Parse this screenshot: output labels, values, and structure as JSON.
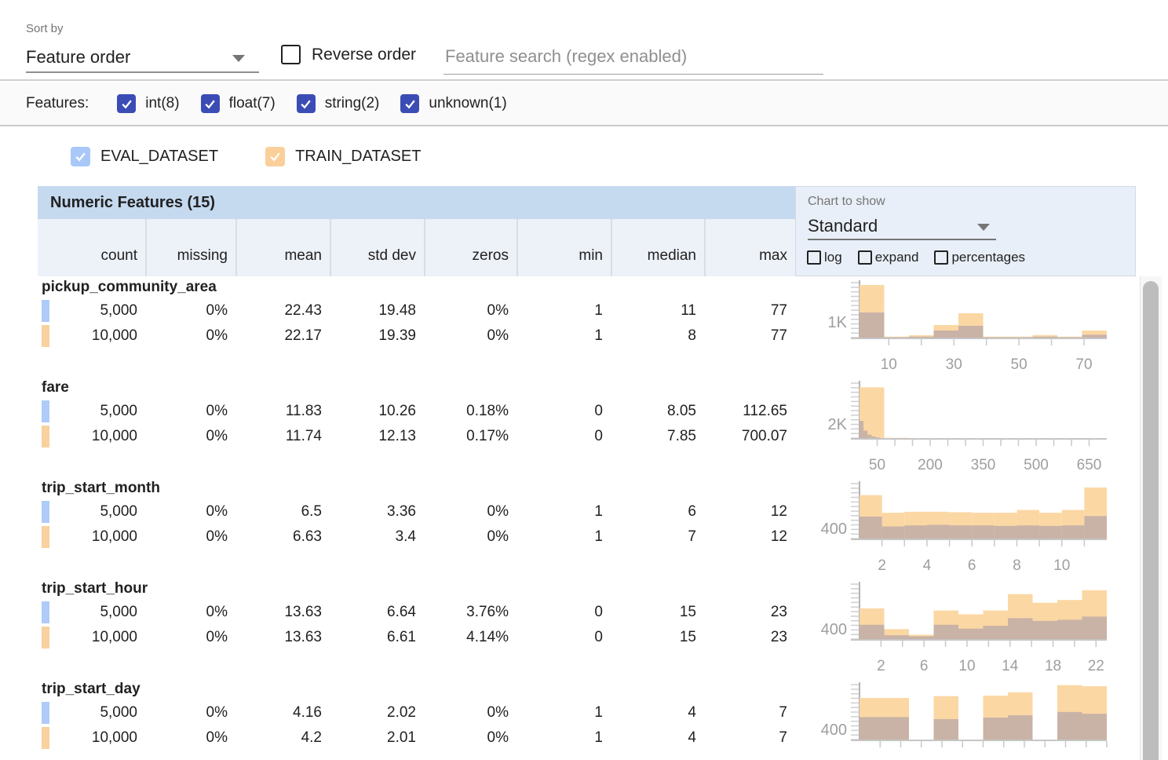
{
  "toolbar": {
    "sort_by_label": "Sort by",
    "sort_by_value": "Feature order",
    "reverse_order_label": "Reverse order",
    "search_placeholder": "Feature search (regex enabled)"
  },
  "features_filter": {
    "label": "Features:",
    "items": [
      {
        "name": "int",
        "label": "int(8)",
        "checked": true
      },
      {
        "name": "float",
        "label": "float(7)",
        "checked": true
      },
      {
        "name": "string",
        "label": "string(2)",
        "checked": true
      },
      {
        "name": "unknown",
        "label": "unknown(1)",
        "checked": true
      }
    ]
  },
  "datasets": [
    {
      "name": "eval",
      "label": "EVAL_DATASET",
      "checked": true,
      "color": "#a9c8f8"
    },
    {
      "name": "train",
      "label": "TRAIN_DATASET",
      "checked": true,
      "color": "#fbcf9a"
    }
  ],
  "colors": {
    "train_bar": "#fbd7a4",
    "overlap_bar": "#c9b3a6",
    "eval_chip": "#aecbfa",
    "train_chip": "#f8d19e",
    "checkbox_indigo": "#3c4cb5",
    "header_band": "#c5d9ef",
    "subheader_band": "#edf1f8",
    "panel_bg": "#e9eff8",
    "axis_text": "#9e9e9e"
  },
  "table": {
    "title": "Numeric Features (15)",
    "columns": [
      "count",
      "missing",
      "mean",
      "std dev",
      "zeros",
      "min",
      "median",
      "max"
    ],
    "rows": [
      {
        "feature": "pickup_community_area",
        "eval": [
          "5,000",
          "0%",
          "22.43",
          "19.48",
          "0%",
          "1",
          "11",
          "77"
        ],
        "train": [
          "10,000",
          "0%",
          "22.17",
          "19.39",
          "0%",
          "1",
          "8",
          "77"
        ]
      },
      {
        "feature": "fare",
        "eval": [
          "5,000",
          "0%",
          "11.83",
          "10.26",
          "0.18%",
          "0",
          "8.05",
          "112.65"
        ],
        "train": [
          "10,000",
          "0%",
          "11.74",
          "12.13",
          "0.17%",
          "0",
          "7.85",
          "700.07"
        ]
      },
      {
        "feature": "trip_start_month",
        "eval": [
          "5,000",
          "0%",
          "6.5",
          "3.36",
          "0%",
          "1",
          "6",
          "12"
        ],
        "train": [
          "10,000",
          "0%",
          "6.63",
          "3.4",
          "0%",
          "1",
          "7",
          "12"
        ]
      },
      {
        "feature": "trip_start_hour",
        "eval": [
          "5,000",
          "0%",
          "13.63",
          "6.64",
          "3.76%",
          "0",
          "15",
          "23"
        ],
        "train": [
          "10,000",
          "0%",
          "13.63",
          "6.61",
          "4.14%",
          "0",
          "15",
          "23"
        ]
      },
      {
        "feature": "trip_start_day",
        "eval": [
          "5,000",
          "0%",
          "4.16",
          "2.02",
          "0%",
          "1",
          "4",
          "7"
        ],
        "train": [
          "10,000",
          "0%",
          "4.2",
          "2.01",
          "0%",
          "1",
          "4",
          "7"
        ]
      }
    ]
  },
  "chart_controls": {
    "label": "Chart to show",
    "value": "Standard",
    "options": [
      {
        "label": "log",
        "checked": false
      },
      {
        "label": "expand",
        "checked": false
      },
      {
        "label": "percentages",
        "checked": false
      }
    ]
  },
  "chart_data": [
    {
      "type": "bar",
      "feature": "pickup_community_area",
      "ylabel": "1K",
      "yvalue": 1000,
      "ymax": 3500,
      "xdomain": [
        1,
        77
      ],
      "xticks": [
        10,
        20,
        30,
        40,
        50,
        60,
        70
      ],
      "xlabels": [
        10,
        30,
        50,
        70
      ],
      "series": [
        {
          "name": "TRAIN_DATASET",
          "role": "train",
          "bars": [
            [
              1,
              8.6,
              3350
            ],
            [
              8.6,
              16.2,
              60
            ],
            [
              16.2,
              23.8,
              150
            ],
            [
              23.8,
              31.4,
              800
            ],
            [
              31.4,
              39,
              1550
            ],
            [
              39,
              46.6,
              60
            ],
            [
              46.6,
              54.2,
              60
            ],
            [
              54.2,
              61.8,
              160
            ],
            [
              61.8,
              69.4,
              60
            ],
            [
              69.4,
              77,
              450
            ]
          ]
        },
        {
          "name": "EVAL_DATASET",
          "role": "overlap",
          "bars": [
            [
              1,
              8.6,
              1600
            ],
            [
              8.6,
              16.2,
              30
            ],
            [
              16.2,
              23.8,
              60
            ],
            [
              23.8,
              31.4,
              450
            ],
            [
              31.4,
              39,
              750
            ],
            [
              39,
              46.6,
              30
            ],
            [
              46.6,
              54.2,
              30
            ],
            [
              54.2,
              61.8,
              60
            ],
            [
              61.8,
              69.4,
              30
            ],
            [
              69.4,
              77,
              180
            ]
          ]
        }
      ]
    },
    {
      "type": "bar",
      "feature": "fare",
      "ylabel": "2K",
      "yvalue": 2000,
      "ymax": 7800,
      "xdomain": [
        0,
        700
      ],
      "xticks": [
        50,
        100,
        150,
        200,
        250,
        300,
        350,
        400,
        450,
        500,
        550,
        600,
        650
      ],
      "xlabels": [
        50,
        200,
        350,
        500,
        650
      ],
      "series": [
        {
          "name": "TRAIN_DATASET",
          "role": "train",
          "bars": [
            [
              0,
              70,
              7200
            ],
            [
              70,
              140,
              40
            ]
          ]
        },
        {
          "name": "EVAL_DATASET",
          "role": "overlap",
          "bars": [
            [
              0,
              11.3,
              2450
            ],
            [
              11.3,
              22.5,
              1050
            ],
            [
              22.5,
              33.8,
              480
            ],
            [
              33.8,
              45.1,
              230
            ],
            [
              45.1,
              56.3,
              110
            ]
          ]
        }
      ]
    },
    {
      "type": "bar",
      "feature": "trip_start_month",
      "ylabel": "400",
      "yvalue": 400,
      "ymax": 2150,
      "xdomain": [
        1,
        12
      ],
      "xticks": [
        2,
        3,
        4,
        5,
        6,
        7,
        8,
        9,
        10,
        11
      ],
      "xlabels": [
        2,
        4,
        6,
        8,
        10
      ],
      "series": [
        {
          "name": "TRAIN_DATASET",
          "role": "train",
          "bars": [
            [
              1,
              2,
              1700
            ],
            [
              2,
              3,
              1010
            ],
            [
              3,
              4,
              1050
            ],
            [
              4,
              5,
              1050
            ],
            [
              5,
              6,
              1030
            ],
            [
              6,
              7,
              1010
            ],
            [
              7,
              8,
              1010
            ],
            [
              8,
              9,
              1120
            ],
            [
              9,
              10,
              1010
            ],
            [
              10,
              11,
              1120
            ],
            [
              11,
              12,
              2000
            ]
          ]
        },
        {
          "name": "EVAL_DATASET",
          "role": "overlap",
          "bars": [
            [
              1,
              2,
              860
            ],
            [
              2,
              3,
              475
            ],
            [
              3,
              4,
              515
            ],
            [
              4,
              5,
              540
            ],
            [
              5,
              6,
              515
            ],
            [
              6,
              7,
              515
            ],
            [
              7,
              8,
              495
            ],
            [
              8,
              9,
              515
            ],
            [
              9,
              10,
              495
            ],
            [
              10,
              11,
              515
            ],
            [
              11,
              12,
              880
            ]
          ]
        }
      ]
    },
    {
      "type": "bar",
      "feature": "trip_start_hour",
      "ylabel": "400",
      "yvalue": 400,
      "ymax": 2150,
      "xdomain": [
        0,
        23
      ],
      "xticks": [
        2,
        4,
        6,
        8,
        10,
        12,
        14,
        16,
        18,
        20,
        22
      ],
      "xlabels": [
        2,
        6,
        10,
        14,
        18,
        22
      ],
      "series": [
        {
          "name": "TRAIN_DATASET",
          "role": "train",
          "bars": [
            [
              0,
              2.3,
              1200
            ],
            [
              2.3,
              4.6,
              390
            ],
            [
              4.6,
              6.9,
              170
            ],
            [
              6.9,
              9.2,
              1120
            ],
            [
              9.2,
              11.5,
              970
            ],
            [
              11.5,
              13.8,
              1120
            ],
            [
              13.8,
              16.1,
              1760
            ],
            [
              16.1,
              18.4,
              1420
            ],
            [
              18.4,
              20.7,
              1530
            ],
            [
              20.7,
              23,
              1910
            ]
          ]
        },
        {
          "name": "EVAL_DATASET",
          "role": "overlap",
          "bars": [
            [
              0,
              2.3,
              560
            ],
            [
              2.3,
              4.6,
              150
            ],
            [
              4.6,
              6.9,
              110
            ],
            [
              6.9,
              9.2,
              560
            ],
            [
              9.2,
              11.5,
              410
            ],
            [
              11.5,
              13.8,
              520
            ],
            [
              13.8,
              16.1,
              820
            ],
            [
              16.1,
              18.4,
              710
            ],
            [
              18.4,
              20.7,
              755
            ],
            [
              20.7,
              23,
              880
            ]
          ]
        }
      ]
    },
    {
      "type": "bar",
      "feature": "trip_start_day",
      "ylabel": "400",
      "yvalue": 400,
      "ymax": 2150,
      "xdomain": [
        1,
        7
      ],
      "xticks": [
        1.5,
        2,
        2.5,
        3,
        3.5,
        4,
        4.5,
        5,
        5.5,
        6,
        6.5,
        7
      ],
      "xlabels": [],
      "series": [
        {
          "name": "TRAIN_DATASET",
          "role": "train",
          "bars": [
            [
              1,
              1.6,
              1630
            ],
            [
              1.6,
              2.2,
              1630
            ],
            [
              2.8,
              3.4,
              1700
            ],
            [
              4,
              4.6,
              1720
            ],
            [
              4.6,
              5.2,
              1850
            ],
            [
              5.8,
              6.4,
              2130
            ],
            [
              6.4,
              7,
              2090
            ]
          ]
        },
        {
          "name": "EVAL_DATASET",
          "role": "overlap",
          "bars": [
            [
              1,
              1.6,
              880
            ],
            [
              1.6,
              2.2,
              880
            ],
            [
              2.8,
              3.4,
              800
            ],
            [
              4,
              4.6,
              860
            ],
            [
              4.6,
              5.2,
              950
            ],
            [
              5.8,
              6.4,
              1080
            ],
            [
              6.4,
              7,
              1010
            ]
          ]
        }
      ]
    }
  ]
}
